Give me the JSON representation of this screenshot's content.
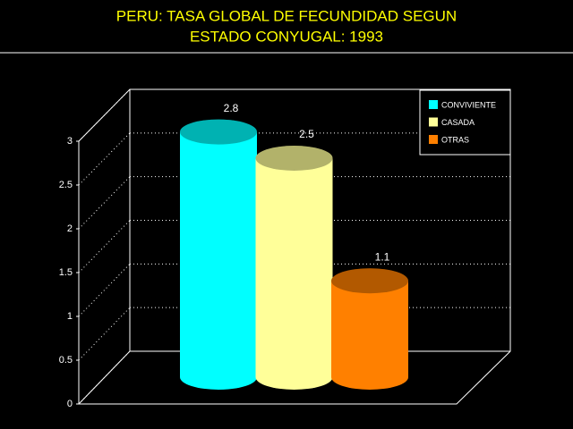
{
  "chart_data": {
    "type": "bar",
    "title": [
      "PERU: TASA GLOBAL DE FECUNDIDAD SEGUN",
      "ESTADO CONYUGAL: 1993"
    ],
    "series": [
      {
        "name": "CONVIVIENTE",
        "color": "#00ffff",
        "values": [
          2.8
        ]
      },
      {
        "name": "CASADA",
        "color": "#ffff99",
        "values": [
          2.5
        ]
      },
      {
        "name": "OTRAS",
        "color": "#ff8000",
        "values": [
          1.1
        ]
      }
    ],
    "ylim": [
      0,
      3
    ],
    "yticks": [
      0,
      0.5,
      1,
      1.5,
      2,
      2.5,
      3
    ],
    "grid": true,
    "legend": "top-right"
  }
}
